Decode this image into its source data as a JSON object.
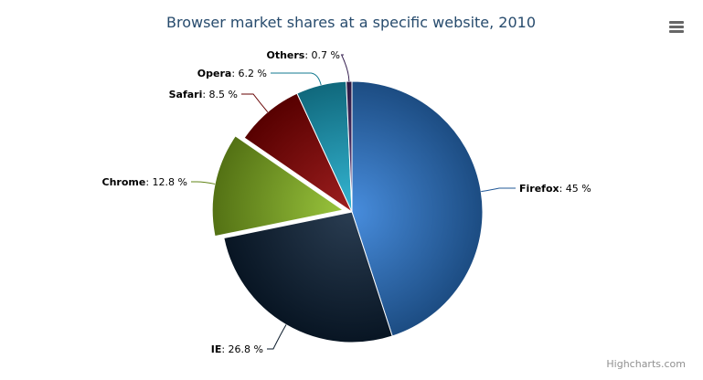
{
  "chart_data": {
    "type": "pie",
    "title": "Browser market shares at a specific website, 2010",
    "unit": "%",
    "slices": [
      {
        "name": "Firefox",
        "value": 45.0,
        "color": "#2f7ed8",
        "sliced": false
      },
      {
        "name": "IE",
        "value": 26.8,
        "color": "#0d233a",
        "sliced": false
      },
      {
        "name": "Chrome",
        "value": 12.8,
        "color": "#8bbc21",
        "sliced": true
      },
      {
        "name": "Safari",
        "value": 8.5,
        "color": "#910000",
        "sliced": false
      },
      {
        "name": "Opera",
        "value": 6.2,
        "color": "#1aadce",
        "sliced": false
      },
      {
        "name": "Others",
        "value": 0.7,
        "color": "#492970",
        "sliced": false
      }
    ],
    "labels": [
      "45 %",
      "26.8 %",
      "12.8 %",
      "8.5 %",
      "6.2 %",
      "0.7 %"
    ]
  },
  "menu": {
    "icon": "hamburger-menu-icon"
  },
  "credits": "Highcharts.com"
}
